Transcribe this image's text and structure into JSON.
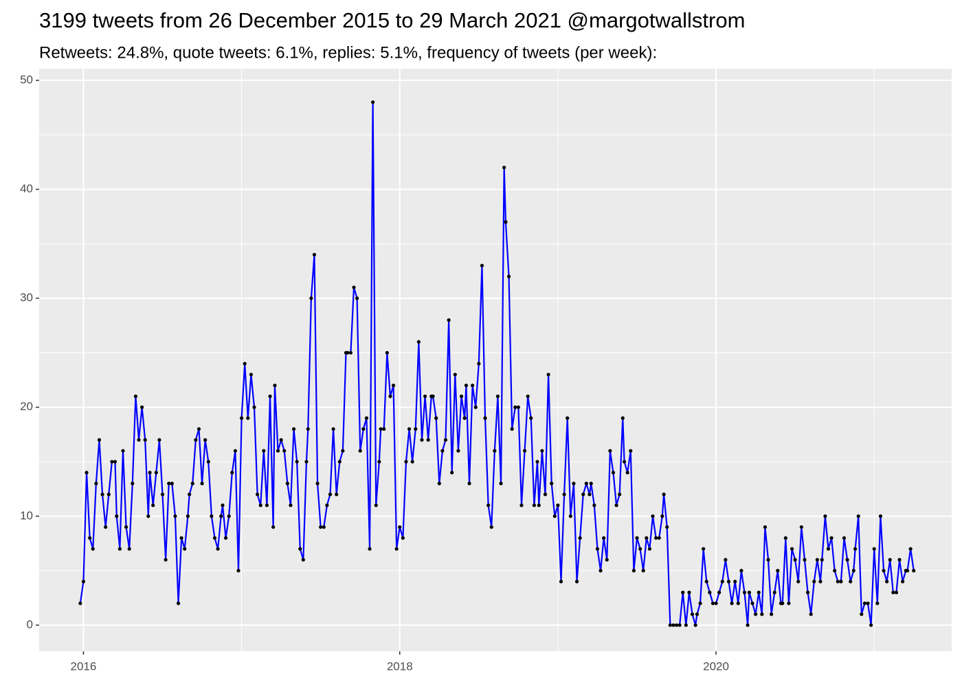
{
  "chart_data": {
    "type": "line",
    "title": "3199 tweets from 26 December 2015 to 29 March 2021 @margotwallstrom",
    "subtitle": "Retweets: 24.8%, quote tweets: 6.1%, replies: 5.1%, frequency of tweets (per week):",
    "x": [
      2015.98,
      2016.0,
      2016.02,
      2016.04,
      2016.06,
      2016.08,
      2016.1,
      2016.12,
      2016.14,
      2016.16,
      2016.18,
      2016.2,
      2016.21,
      2016.23,
      2016.25,
      2016.27,
      2016.29,
      2016.31,
      2016.33,
      2016.35,
      2016.37,
      2016.39,
      2016.41,
      2016.42,
      2016.44,
      2016.46,
      2016.48,
      2016.5,
      2016.52,
      2016.54,
      2016.56,
      2016.58,
      2016.6,
      2016.62,
      2016.64,
      2016.66,
      2016.67,
      2016.69,
      2016.71,
      2016.73,
      2016.75,
      2016.77,
      2016.79,
      2016.81,
      2016.83,
      2016.85,
      2016.87,
      2016.88,
      2016.9,
      2016.92,
      2016.94,
      2016.96,
      2016.98,
      2017.0,
      2017.02,
      2017.04,
      2017.06,
      2017.08,
      2017.1,
      2017.12,
      2017.14,
      2017.16,
      2017.18,
      2017.2,
      2017.21,
      2017.23,
      2017.25,
      2017.27,
      2017.29,
      2017.31,
      2017.33,
      2017.35,
      2017.37,
      2017.39,
      2017.41,
      2017.42,
      2017.44,
      2017.46,
      2017.48,
      2017.5,
      2017.52,
      2017.54,
      2017.56,
      2017.58,
      2017.6,
      2017.62,
      2017.64,
      2017.66,
      2017.67,
      2017.69,
      2017.71,
      2017.73,
      2017.75,
      2017.77,
      2017.79,
      2017.81,
      2017.83,
      2017.85,
      2017.87,
      2017.88,
      2017.9,
      2017.92,
      2017.94,
      2017.96,
      2017.98,
      2018.0,
      2018.02,
      2018.04,
      2018.06,
      2018.08,
      2018.1,
      2018.12,
      2018.14,
      2018.16,
      2018.18,
      2018.2,
      2018.21,
      2018.23,
      2018.25,
      2018.27,
      2018.29,
      2018.31,
      2018.33,
      2018.35,
      2018.37,
      2018.39,
      2018.41,
      2018.42,
      2018.44,
      2018.46,
      2018.48,
      2018.5,
      2018.52,
      2018.54,
      2018.56,
      2018.58,
      2018.6,
      2018.62,
      2018.64,
      2018.66,
      2018.67,
      2018.69,
      2018.71,
      2018.73,
      2018.75,
      2018.77,
      2018.79,
      2018.81,
      2018.83,
      2018.85,
      2018.87,
      2018.88,
      2018.9,
      2018.92,
      2018.94,
      2018.96,
      2018.98,
      2019.0,
      2019.02,
      2019.04,
      2019.06,
      2019.08,
      2019.1,
      2019.12,
      2019.14,
      2019.16,
      2019.18,
      2019.2,
      2019.21,
      2019.23,
      2019.25,
      2019.27,
      2019.29,
      2019.31,
      2019.33,
      2019.35,
      2019.37,
      2019.39,
      2019.41,
      2019.42,
      2019.44,
      2019.46,
      2019.48,
      2019.5,
      2019.52,
      2019.54,
      2019.56,
      2019.58,
      2019.6,
      2019.62,
      2019.64,
      2019.66,
      2019.67,
      2019.69,
      2019.71,
      2019.73,
      2019.75,
      2019.77,
      2019.79,
      2019.81,
      2019.83,
      2019.85,
      2019.87,
      2019.88,
      2019.9,
      2019.92,
      2019.94,
      2019.96,
      2019.98,
      2020.0,
      2020.02,
      2020.04,
      2020.06,
      2020.08,
      2020.1,
      2020.12,
      2020.14,
      2020.16,
      2020.18,
      2020.2,
      2020.21,
      2020.23,
      2020.25,
      2020.27,
      2020.29,
      2020.31,
      2020.33,
      2020.35,
      2020.37,
      2020.39,
      2020.41,
      2020.42,
      2020.44,
      2020.46,
      2020.48,
      2020.5,
      2020.52,
      2020.54,
      2020.56,
      2020.58,
      2020.6,
      2020.62,
      2020.64,
      2020.66,
      2020.67,
      2020.69,
      2020.71,
      2020.73,
      2020.75,
      2020.77,
      2020.79,
      2020.81,
      2020.83,
      2020.85,
      2020.87,
      2020.88,
      2020.9,
      2020.92,
      2020.94,
      2020.96,
      2020.98,
      2021.0,
      2021.02,
      2021.04,
      2021.06,
      2021.08,
      2021.1,
      2021.12,
      2021.14,
      2021.16,
      2021.18,
      2021.2,
      2021.21,
      2021.23,
      2021.25
    ],
    "values": [
      2,
      4,
      14,
      8,
      7,
      13,
      17,
      12,
      9,
      12,
      15,
      15,
      10,
      7,
      16,
      9,
      7,
      13,
      21,
      17,
      20,
      17,
      10,
      14,
      11,
      14,
      17,
      12,
      6,
      13,
      13,
      10,
      2,
      8,
      7,
      10,
      12,
      13,
      17,
      18,
      13,
      17,
      15,
      10,
      8,
      7,
      10,
      11,
      8,
      10,
      14,
      16,
      5,
      19,
      24,
      19,
      23,
      20,
      12,
      11,
      16,
      11,
      21,
      9,
      22,
      16,
      17,
      16,
      13,
      11,
      18,
      15,
      7,
      6,
      15,
      18,
      30,
      34,
      13,
      9,
      9,
      11,
      12,
      18,
      12,
      15,
      16,
      25,
      25,
      25,
      31,
      30,
      16,
      18,
      19,
      7,
      48,
      11,
      15,
      18,
      18,
      25,
      21,
      22,
      7,
      9,
      8,
      15,
      18,
      15,
      18,
      26,
      17,
      21,
      17,
      21,
      21,
      19,
      13,
      16,
      17,
      28,
      14,
      23,
      16,
      21,
      19,
      22,
      13,
      22,
      20,
      24,
      33,
      19,
      11,
      9,
      16,
      21,
      13,
      42,
      37,
      32,
      18,
      20,
      20,
      11,
      16,
      21,
      19,
      11,
      15,
      11,
      16,
      12,
      23,
      13,
      10,
      11,
      4,
      12,
      19,
      10,
      13,
      4,
      8,
      12,
      13,
      12,
      13,
      11,
      7,
      5,
      8,
      6,
      16,
      14,
      11,
      12,
      19,
      15,
      14,
      16,
      5,
      8,
      7,
      5,
      8,
      7,
      10,
      8,
      8,
      10,
      12,
      9,
      0,
      0,
      0,
      0,
      3,
      0,
      3,
      1,
      0,
      1,
      2,
      7,
      4,
      3,
      2,
      2,
      3,
      4,
      6,
      4,
      2,
      4,
      2,
      5,
      3,
      0,
      3,
      2,
      1,
      3,
      1,
      9,
      6,
      1,
      3,
      5,
      2,
      2,
      8,
      2,
      7,
      6,
      4,
      9,
      6,
      3,
      1,
      4,
      6,
      4,
      6,
      10,
      7,
      8,
      5,
      4,
      4,
      8,
      6,
      4,
      5,
      7,
      10,
      1,
      2,
      2,
      0,
      7,
      2,
      10,
      5,
      4,
      6,
      3,
      3,
      6,
      4,
      5,
      5,
      7,
      5
    ],
    "line_color": "#0000ff",
    "point_color": "#000000",
    "xlim": [
      2015.72,
      2021.49
    ],
    "xticks": [
      2016,
      2018,
      2020
    ],
    "xminor": [
      2017,
      2019,
      2021
    ],
    "ylim": [
      -2.4,
      51.07
    ],
    "yticks": [
      0,
      10,
      20,
      30,
      40,
      50
    ],
    "yminor": [
      5,
      15,
      25,
      35,
      45
    ],
    "grid": true
  }
}
